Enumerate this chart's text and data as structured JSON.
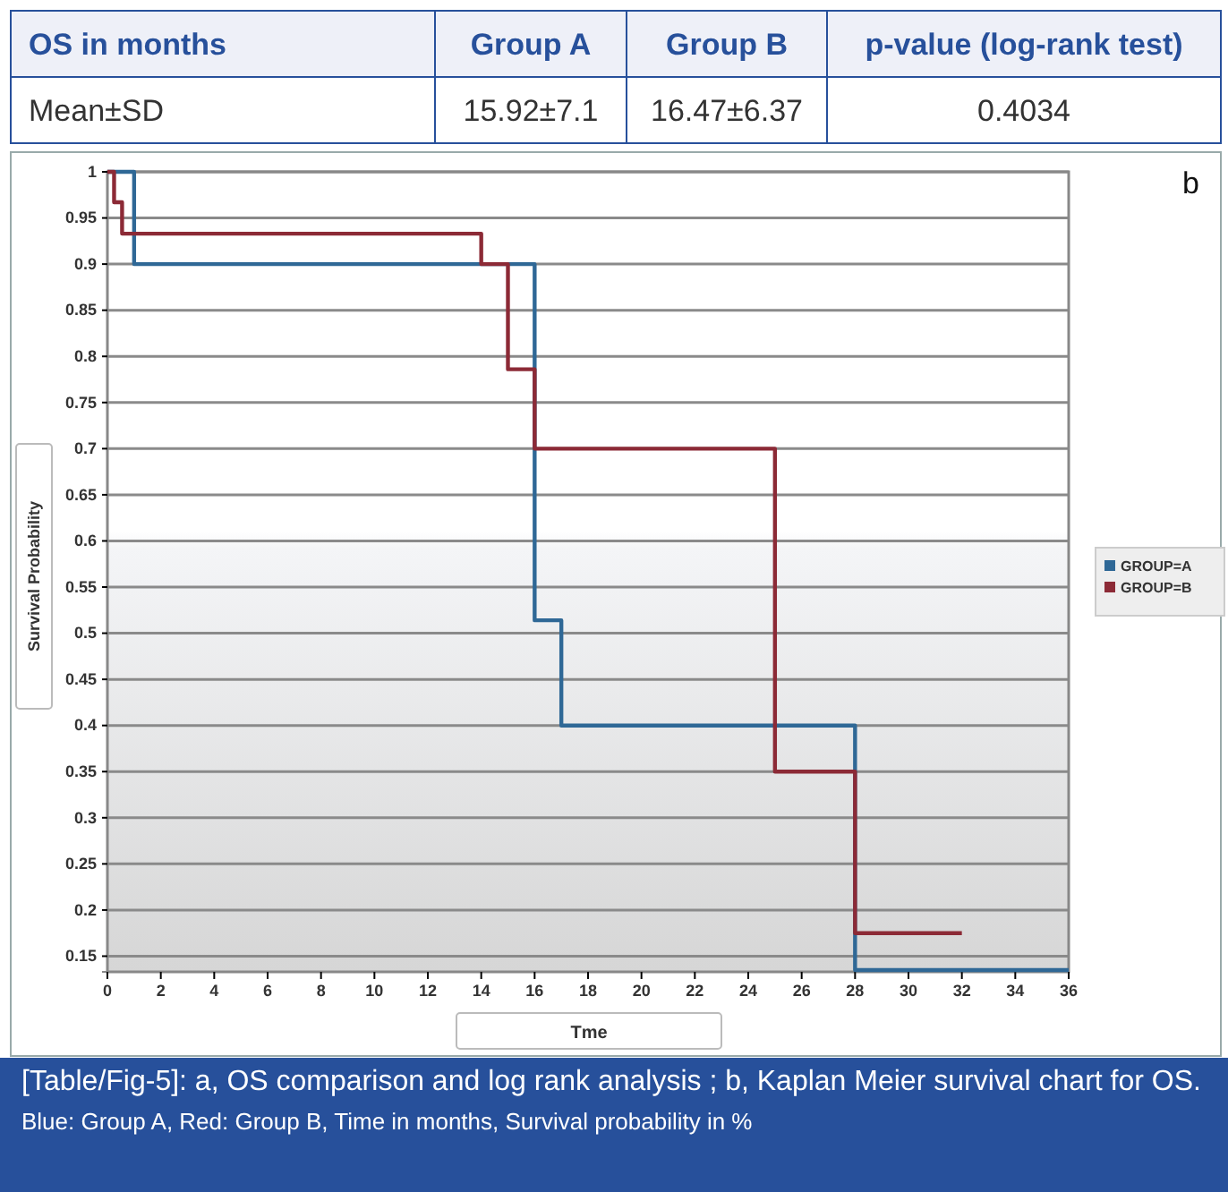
{
  "chart_data": [
    {
      "type": "other",
      "annotations": [
        "OS in months",
        "Group A",
        "Group B",
        "p-value (log-rank test)",
        "Mean±SD",
        "15.92±7.1",
        "16.47±6.37",
        "0.4034"
      ]
    },
    {
      "type": "step",
      "xlabel": "Tme",
      "ylabel": "Survival Probability",
      "series": [
        {
          "name": "GROUP=A",
          "color": "#2f6896",
          "x": [
            0,
            1,
            16,
            17,
            28,
            36
          ],
          "values": [
            1,
            0.9,
            0.514,
            0.4,
            0.135,
            0.135
          ]
        },
        {
          "name": "GROUP=B",
          "color": "#8c2a36",
          "x": [
            0,
            0.25,
            0.55,
            14,
            15,
            16,
            25,
            28,
            32
          ],
          "values": [
            1,
            0.967,
            0.933,
            0.9,
            0.786,
            0.7,
            0.35,
            0.175,
            0.175
          ]
        }
      ],
      "xlim": [
        0,
        36
      ],
      "xticks": [
        0,
        2,
        4,
        6,
        8,
        10,
        12,
        14,
        16,
        18,
        20,
        22,
        24,
        26,
        28,
        30,
        32,
        34,
        36
      ],
      "ylim": [
        0.133,
        1
      ],
      "yticks": [
        0.15,
        0.2,
        0.25,
        0.3,
        0.35,
        0.4,
        0.45,
        0.5,
        0.55,
        0.6,
        0.65,
        0.7,
        0.75,
        0.8,
        0.85,
        0.9,
        0.95,
        1
      ],
      "grid": "y",
      "legend": "right",
      "annotations": [
        "b",
        "[Table/Fig-5]:  a, OS comparison and log rank analysis ; b, Kaplan Meier survival chart for OS.",
        "Blue: Group A, Red: Group B, Time in months, Survival probability in %"
      ]
    }
  ]
}
